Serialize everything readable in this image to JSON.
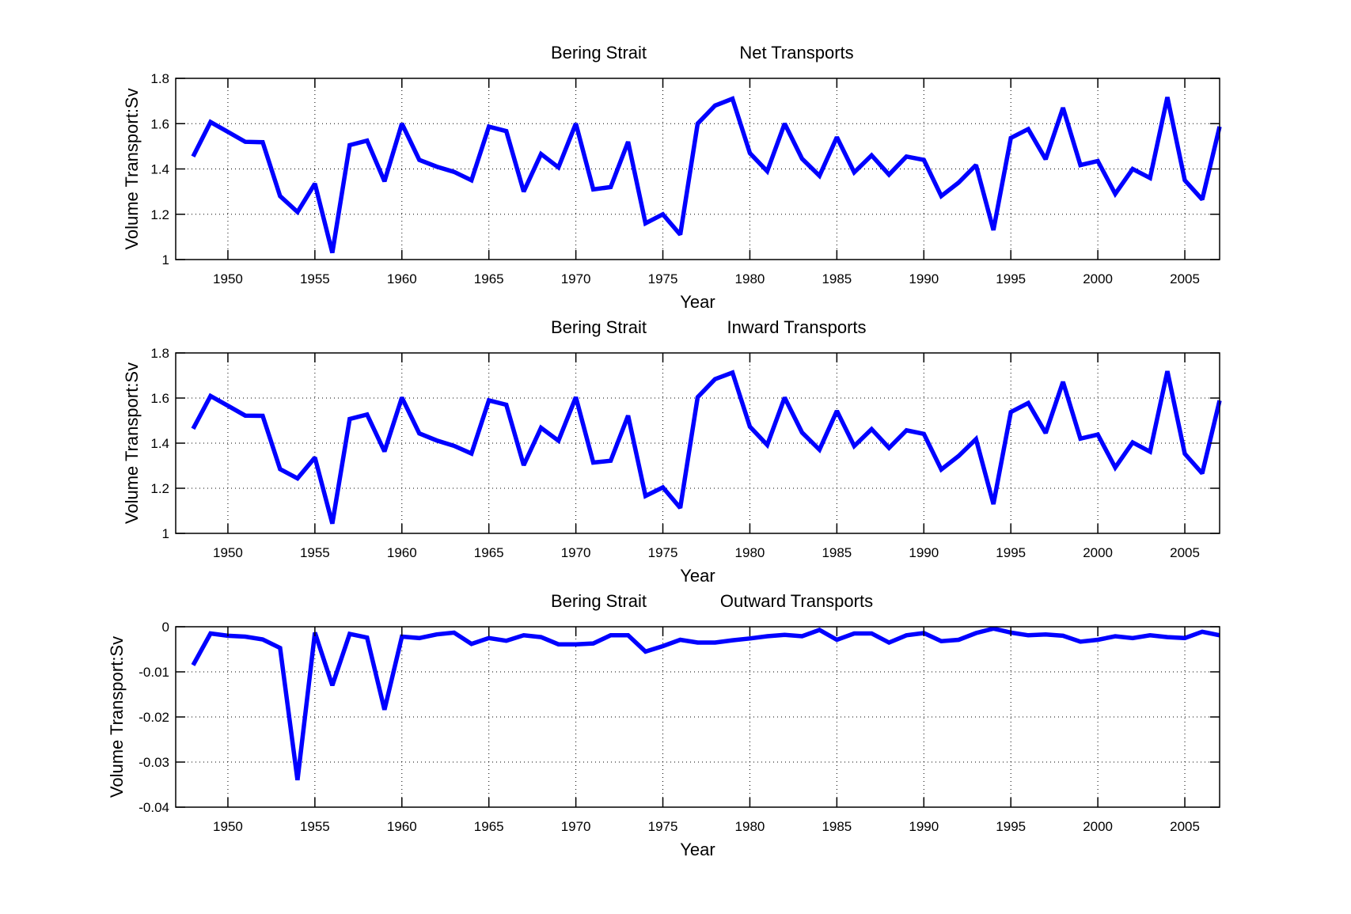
{
  "figure": {
    "line_color": "#0000ff",
    "background": "#ffffff"
  },
  "chart_data": [
    {
      "type": "line",
      "title_left": "Bering Strait",
      "title_right": "Net Transports",
      "xlabel": "Year",
      "ylabel": "Volume Transport:Sv",
      "xlim": [
        1947,
        2007
      ],
      "ylim": [
        1,
        1.8
      ],
      "xticks": [
        1950,
        1955,
        1960,
        1965,
        1970,
        1975,
        1980,
        1985,
        1990,
        1995,
        2000,
        2005
      ],
      "yticks": [
        1,
        1.2,
        1.4,
        1.6,
        1.8
      ],
      "ytick_labels": [
        "1",
        "1.2",
        "1.4",
        "1.6",
        "1.8"
      ],
      "grid": true,
      "x": [
        1948,
        1949,
        1950,
        1951,
        1952,
        1953,
        1954,
        1955,
        1956,
        1957,
        1958,
        1959,
        1960,
        1961,
        1962,
        1963,
        1964,
        1965,
        1966,
        1967,
        1968,
        1969,
        1970,
        1971,
        1972,
        1973,
        1974,
        1975,
        1976,
        1977,
        1978,
        1979,
        1980,
        1981,
        1982,
        1983,
        1984,
        1985,
        1986,
        1987,
        1988,
        1989,
        1990,
        1991,
        1992,
        1993,
        1994,
        1995,
        1996,
        1997,
        1998,
        1999,
        2000,
        2001,
        2002,
        2003,
        2004,
        2005,
        2006,
        2007
      ],
      "series": [
        {
          "name": "Net Transports",
          "values": [
            1.455,
            1.607,
            1.564,
            1.52,
            1.518,
            1.28,
            1.21,
            1.335,
            1.03,
            1.505,
            1.525,
            1.345,
            1.6,
            1.44,
            1.41,
            1.387,
            1.35,
            1.587,
            1.567,
            1.3,
            1.466,
            1.407,
            1.6,
            1.31,
            1.32,
            1.52,
            1.16,
            1.2,
            1.11,
            1.6,
            1.68,
            1.71,
            1.47,
            1.39,
            1.6,
            1.445,
            1.37,
            1.54,
            1.385,
            1.46,
            1.375,
            1.455,
            1.44,
            1.28,
            1.34,
            1.417,
            1.13,
            1.537,
            1.576,
            1.443,
            1.67,
            1.417,
            1.435,
            1.29,
            1.4,
            1.36,
            1.717,
            1.35,
            1.265,
            1.587
          ]
        }
      ]
    },
    {
      "type": "line",
      "title_left": "Bering Strait",
      "title_right": "Inward Transports",
      "xlabel": "Year",
      "ylabel": "Volume Transport:Sv",
      "xlim": [
        1947,
        2007
      ],
      "ylim": [
        1,
        1.8
      ],
      "xticks": [
        1950,
        1955,
        1960,
        1965,
        1970,
        1975,
        1980,
        1985,
        1990,
        1995,
        2000,
        2005
      ],
      "yticks": [
        1,
        1.2,
        1.4,
        1.6,
        1.8
      ],
      "ytick_labels": [
        "1",
        "1.2",
        "1.4",
        "1.6",
        "1.8"
      ],
      "grid": true,
      "x": [
        1948,
        1949,
        1950,
        1951,
        1952,
        1953,
        1954,
        1955,
        1956,
        1957,
        1958,
        1959,
        1960,
        1961,
        1962,
        1963,
        1964,
        1965,
        1966,
        1967,
        1968,
        1969,
        1970,
        1971,
        1972,
        1973,
        1974,
        1975,
        1976,
        1977,
        1978,
        1979,
        1980,
        1981,
        1982,
        1983,
        1984,
        1985,
        1986,
        1987,
        1988,
        1989,
        1990,
        1991,
        1992,
        1993,
        1994,
        1995,
        1996,
        1997,
        1998,
        1999,
        2000,
        2001,
        2002,
        2003,
        2004,
        2005,
        2006,
        2007
      ],
      "series": [
        {
          "name": "Inward Transports",
          "values": [
            1.464,
            1.609,
            1.566,
            1.522,
            1.521,
            1.285,
            1.244,
            1.336,
            1.043,
            1.507,
            1.527,
            1.363,
            1.602,
            1.443,
            1.412,
            1.388,
            1.354,
            1.59,
            1.57,
            1.302,
            1.468,
            1.411,
            1.604,
            1.314,
            1.322,
            1.522,
            1.166,
            1.204,
            1.113,
            1.604,
            1.684,
            1.713,
            1.473,
            1.392,
            1.602,
            1.447,
            1.371,
            1.543,
            1.387,
            1.462,
            1.379,
            1.457,
            1.441,
            1.283,
            1.343,
            1.418,
            1.13,
            1.538,
            1.578,
            1.445,
            1.672,
            1.42,
            1.438,
            1.292,
            1.403,
            1.362,
            1.719,
            1.353,
            1.266,
            1.589
          ]
        }
      ]
    },
    {
      "type": "line",
      "title_left": "Bering Strait",
      "title_right": "Outward Transports",
      "xlabel": "Year",
      "ylabel": "Volume Transport:Sv",
      "xlim": [
        1947,
        2007
      ],
      "ylim": [
        -0.04,
        0
      ],
      "xticks": [
        1950,
        1955,
        1960,
        1965,
        1970,
        1975,
        1980,
        1985,
        1990,
        1995,
        2000,
        2005
      ],
      "yticks": [
        -0.04,
        -0.03,
        -0.02,
        -0.01,
        0
      ],
      "ytick_labels": [
        "-0.04",
        "-0.03",
        "-0.02",
        "-0.01",
        "0"
      ],
      "grid": true,
      "x": [
        1948,
        1949,
        1950,
        1951,
        1952,
        1953,
        1954,
        1955,
        1956,
        1957,
        1958,
        1959,
        1960,
        1961,
        1962,
        1963,
        1964,
        1965,
        1966,
        1967,
        1968,
        1969,
        1970,
        1971,
        1972,
        1973,
        1974,
        1975,
        1976,
        1977,
        1978,
        1979,
        1980,
        1981,
        1982,
        1983,
        1984,
        1985,
        1986,
        1987,
        1988,
        1989,
        1990,
        1991,
        1992,
        1993,
        1994,
        1995,
        1996,
        1997,
        1998,
        1999,
        2000,
        2001,
        2002,
        2003,
        2004,
        2005,
        2006,
        2007
      ],
      "series": [
        {
          "name": "Outward Transports",
          "values": [
            -0.0085,
            -0.0015,
            -0.002,
            -0.0022,
            -0.0028,
            -0.0047,
            -0.034,
            -0.0013,
            -0.013,
            -0.0016,
            -0.0024,
            -0.0184,
            -0.0022,
            -0.0025,
            -0.0017,
            -0.0013,
            -0.0038,
            -0.0025,
            -0.0031,
            -0.0019,
            -0.0023,
            -0.0039,
            -0.0039,
            -0.0037,
            -0.0019,
            -0.0019,
            -0.0055,
            -0.0043,
            -0.0029,
            -0.0035,
            -0.0035,
            -0.003,
            -0.0026,
            -0.0021,
            -0.0018,
            -0.0021,
            -0.0007,
            -0.0029,
            -0.0015,
            -0.0015,
            -0.0035,
            -0.0019,
            -0.0014,
            -0.0032,
            -0.0029,
            -0.0014,
            -0.0004,
            -0.0013,
            -0.0019,
            -0.0017,
            -0.002,
            -0.0033,
            -0.0029,
            -0.0021,
            -0.0025,
            -0.0019,
            -0.0023,
            -0.0025,
            -0.0011,
            -0.0019
          ]
        }
      ]
    }
  ]
}
